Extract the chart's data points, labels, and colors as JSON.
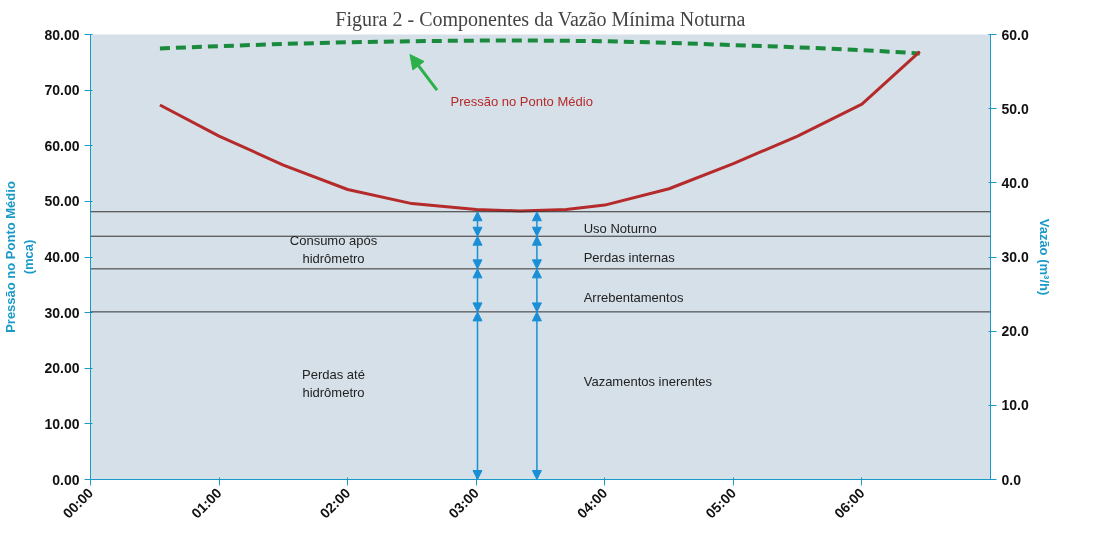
{
  "chart_data": {
    "type": "line",
    "title": "Figura 2 - Componentes da Vazão Mínima Noturna",
    "ylabel": "Pressão no Ponto Médio\n(mca)",
    "y2label": "Vazão (m³/h)",
    "xlim": [
      0,
      7
    ],
    "xticks": [
      {
        "value": 0,
        "label": "00:00"
      },
      {
        "value": 1,
        "label": "01:00"
      },
      {
        "value": 2,
        "label": "02:00"
      },
      {
        "value": 3,
        "label": "03:00"
      },
      {
        "value": 4,
        "label": "04:00"
      },
      {
        "value": 5,
        "label": "05:00"
      },
      {
        "value": 6,
        "label": "06:00"
      }
    ],
    "ylim": [
      0,
      80
    ],
    "yticks": [
      {
        "value": 0,
        "label": "0.00"
      },
      {
        "value": 10,
        "label": "10.00"
      },
      {
        "value": 20,
        "label": "20.00"
      },
      {
        "value": 30,
        "label": "30.00"
      },
      {
        "value": 40,
        "label": "40.00"
      },
      {
        "value": 50,
        "label": "50.00"
      },
      {
        "value": 60,
        "label": "60.00"
      },
      {
        "value": 70,
        "label": "70.00"
      },
      {
        "value": 80,
        "label": "80.00"
      }
    ],
    "y2lim": [
      0,
      60
    ],
    "y2ticks": [
      {
        "value": 0,
        "label": "0.0"
      },
      {
        "value": 10,
        "label": "10.0"
      },
      {
        "value": 20,
        "label": "20.0"
      },
      {
        "value": 30,
        "label": "30.0"
      },
      {
        "value": 40,
        "label": "40.0"
      },
      {
        "value": 50,
        "label": "50.0"
      },
      {
        "value": 60,
        "label": "60.0"
      }
    ],
    "series": [
      {
        "color": "#1a8a3c",
        "line_style": "dashed",
        "x": [
          0.54,
          1.0,
          1.5,
          2.0,
          2.5,
          3.0,
          3.5,
          4.0,
          4.5,
          5.0,
          5.5,
          6.0,
          6.45
        ],
        "values": [
          77.5,
          77.9,
          78.3,
          78.6,
          78.8,
          78.9,
          78.9,
          78.8,
          78.5,
          78.1,
          77.7,
          77.2,
          76.6
        ]
      },
      {
        "color": "#b52a2a",
        "line_style": "solid",
        "axis": "y2",
        "x": [
          0.54,
          1.0,
          1.5,
          2.0,
          2.5,
          3.0,
          3.34,
          3.7,
          4.0,
          4.5,
          5.0,
          5.5,
          6.0,
          6.45
        ],
        "values": [
          50.5,
          46.3,
          42.4,
          39.1,
          37.2,
          36.4,
          36.2,
          36.4,
          37.0,
          39.2,
          42.6,
          46.3,
          50.6,
          57.7
        ]
      }
    ],
    "ref_lines": [
      {
        "axis": "y2",
        "value": 36.1,
        "color": "#333333"
      },
      {
        "axis": "y2",
        "value": 32.8,
        "color": "#333333"
      },
      {
        "axis": "y2",
        "value": 28.4,
        "color": "#333333"
      },
      {
        "axis": "y2",
        "value": 22.6,
        "color": "#333333"
      }
    ],
    "annotations": [
      "Pressão no Ponto Médio",
      "Consumo após\nhidrômetro",
      "Perdas até\nhidrômetro",
      "Uso Noturno",
      "Perdas internas",
      "Arrebentamentos",
      "Vazamentos inerentes"
    ]
  }
}
